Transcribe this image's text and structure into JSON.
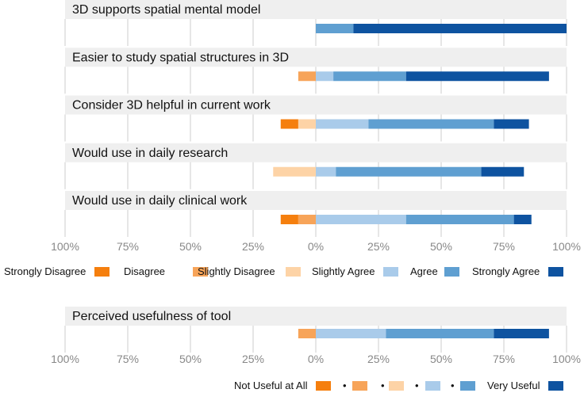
{
  "chart_data": [
    {
      "type": "bar",
      "orientation": "horizontal-diverging",
      "x_tick_labels": [
        "100%",
        "75%",
        "50%",
        "25%",
        "0%",
        "25%",
        "50%",
        "75%",
        "100%"
      ],
      "xlim": [
        -100,
        100
      ],
      "grid": true,
      "legend_position": "bottom",
      "categories": [
        "3D supports spatial mental model",
        "Easier to study spatial structures in 3D",
        "Consider 3D helpful in current work",
        "Would use in daily research",
        "Would use in daily clinical work"
      ],
      "series": [
        {
          "name": "Strongly Disagree",
          "color": "#F57F0E",
          "side": "negative",
          "values": [
            0,
            0,
            7,
            0,
            7
          ]
        },
        {
          "name": "Disagree",
          "color": "#F7A459",
          "side": "negative",
          "values": [
            0,
            7,
            0,
            0,
            7
          ]
        },
        {
          "name": "Slightly Disagree",
          "color": "#FDD3A6",
          "side": "negative",
          "values": [
            0,
            0,
            7,
            17,
            0
          ]
        },
        {
          "name": "Slightly Agree",
          "color": "#A9CBEA",
          "side": "positive",
          "values": [
            0,
            7,
            21,
            8,
            36
          ]
        },
        {
          "name": "Agree",
          "color": "#5F9FD1",
          "side": "positive",
          "values": [
            15,
            29,
            50,
            58,
            43
          ]
        },
        {
          "name": "Strongly Agree",
          "color": "#0E53A0",
          "side": "positive",
          "values": [
            85,
            57,
            14,
            17,
            7
          ]
        }
      ]
    },
    {
      "type": "bar",
      "orientation": "horizontal-diverging",
      "x_tick_labels": [
        "100%",
        "75%",
        "50%",
        "25%",
        "0%",
        "25%",
        "50%",
        "75%",
        "100%"
      ],
      "xlim": [
        -100,
        100
      ],
      "grid": true,
      "legend_position": "bottom",
      "categories": [
        "Perceived usefulness of tool"
      ],
      "series": [
        {
          "name": "Not Useful at All",
          "color": "#F57F0E",
          "side": "negative",
          "values": [
            0
          ]
        },
        {
          "name": "•",
          "color": "#F7A459",
          "side": "negative",
          "values": [
            7
          ]
        },
        {
          "name": "•",
          "color": "#FDD3A6",
          "side": "negative",
          "values": [
            0
          ]
        },
        {
          "name": "•",
          "color": "#A9CBEA",
          "side": "positive",
          "values": [
            28
          ]
        },
        {
          "name": "•",
          "color": "#5F9FD1",
          "side": "positive",
          "values": [
            43
          ]
        },
        {
          "name": "Very Useful",
          "color": "#0E53A0",
          "side": "positive",
          "values": [
            22
          ]
        }
      ]
    }
  ]
}
